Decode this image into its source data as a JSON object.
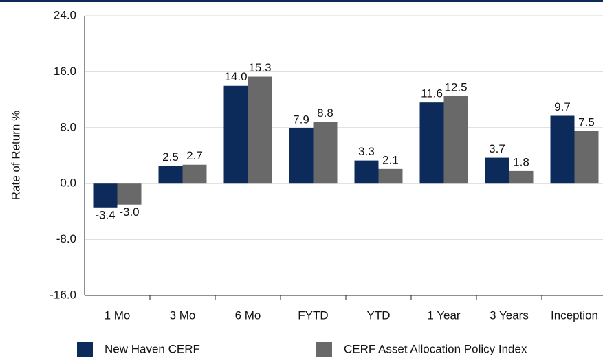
{
  "chart_data": {
    "type": "bar",
    "y_label": "Rate of Return %",
    "categories": [
      "1 Mo",
      "3 Mo",
      "6 Mo",
      "FYTD",
      "YTD",
      "1 Year",
      "3 Years",
      "Inception"
    ],
    "series": [
      {
        "name": "New Haven CERF",
        "color": "#0c2b5a",
        "values": [
          -3.4,
          2.5,
          14.0,
          7.9,
          3.3,
          11.6,
          3.7,
          9.7
        ],
        "value_labels": [
          "-3.4",
          "2.5",
          "14.0",
          "7.9",
          "3.3",
          "11.6",
          "3.7",
          "9.7"
        ]
      },
      {
        "name": "CERF Asset Allocation Policy Index",
        "color": "#696969",
        "values": [
          -3.0,
          2.7,
          15.3,
          8.8,
          2.1,
          12.5,
          1.8,
          7.5
        ],
        "value_labels": [
          "-3.0",
          "2.7",
          "15.3",
          "8.8",
          "2.1",
          "12.5",
          "1.8",
          "7.5"
        ]
      }
    ],
    "ylim": [
      -16,
      24
    ],
    "yticks": [
      {
        "value": -16,
        "label": "-16.0"
      },
      {
        "value": -8,
        "label": "-8.0"
      },
      {
        "value": 0,
        "label": "0.0"
      },
      {
        "value": 8,
        "label": "8.0"
      },
      {
        "value": 16,
        "label": "16.0"
      },
      {
        "value": 24,
        "label": "24.0"
      }
    ],
    "grid": true
  }
}
